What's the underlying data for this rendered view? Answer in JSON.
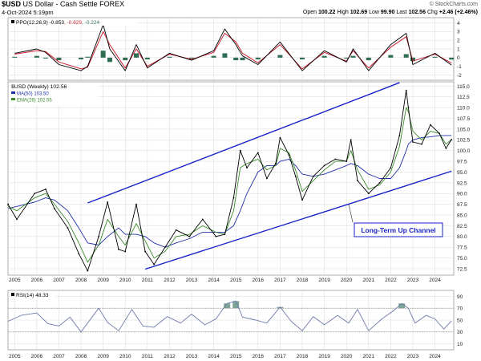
{
  "header": {
    "symbol": "$USD",
    "name": "US Dollar - Cash Settle",
    "exchange": "FOREX",
    "date": "4-Oct-2024 5:19pm",
    "brand": "© StockCharts.com",
    "open_label": "Open",
    "open": "100.22",
    "high_label": "High",
    "high": "102.69",
    "low_label": "Low",
    "low": "99.90",
    "last_label": "Last",
    "last": "102.56",
    "chg_label": "Chg",
    "chg": "+2.46 (+2.46%)"
  },
  "colors": {
    "price": "#000000",
    "ma": "#1f2fa8",
    "ema": "#3a8a2a",
    "channel": "#1a22c8",
    "ppo_hist": "#2f6e52",
    "ppo_line": "#000000",
    "ppo_signal": "#cc2233",
    "rsi": "#6c7aa8",
    "rsi_fill": "#5f8f82",
    "grid": "#d9d9d9",
    "axis": "#888888",
    "annotation_border": "#1a22c8"
  },
  "chart_data": [
    {
      "type": "line",
      "panel": "ppo",
      "label": "PPO(12,26,9) -0.853, -0.629, -0.224",
      "label_parts": [
        "PPO(12,26,9)",
        " -0.853",
        ", -0.629",
        ", -0.224"
      ],
      "ylim": [
        -2.6,
        4.6
      ],
      "y_ticks": [
        4,
        3,
        2,
        1,
        0,
        -1,
        -2
      ],
      "x": [
        2005.0,
        2006.0,
        2006.4,
        2007.0,
        2008.0,
        2008.3,
        2009.0,
        2009.3,
        2010.0,
        2010.5,
        2011.0,
        2012.0,
        2013.0,
        2014.0,
        2014.5,
        2015.0,
        2015.3,
        2016.0,
        2017.0,
        2018.0,
        2019.0,
        2020.0,
        2020.3,
        2021.0,
        2022.0,
        2022.7,
        2023.0,
        2024.0,
        2024.75
      ],
      "series": [
        {
          "values": [
            0.5,
            1.0,
            0.6,
            -0.8,
            -1.5,
            -1.0,
            3.8,
            1.0,
            -1.5,
            1.5,
            -1.2,
            0.5,
            -0.3,
            0.8,
            3.3,
            1.5,
            0.2,
            -0.8,
            1.8,
            -1.5,
            0.8,
            -0.5,
            1.0,
            -1.5,
            1.5,
            2.8,
            -0.8,
            0.5,
            -0.853
          ]
        },
        {
          "values": [
            0.4,
            0.8,
            0.7,
            -0.5,
            -1.3,
            -1.1,
            3.0,
            1.5,
            -1.2,
            1.0,
            -1.0,
            0.4,
            -0.2,
            0.6,
            2.8,
            1.8,
            0.5,
            -0.6,
            1.5,
            -1.3,
            0.6,
            -0.4,
            0.8,
            -1.2,
            1.2,
            2.4,
            -0.4,
            0.4,
            -0.629
          ]
        }
      ]
    },
    {
      "type": "line",
      "panel": "price",
      "label": "$USD (Weekly) 102.56",
      "ylabel": "",
      "ylim": [
        71,
        116
      ],
      "y_ticks": [
        115.0,
        112.5,
        110.0,
        107.5,
        105.0,
        102.5,
        100.0,
        97.5,
        95.0,
        92.5,
        90.0,
        87.5,
        85.0,
        82.5,
        80.0,
        77.5,
        75.0,
        72.5
      ],
      "x_ticks": [
        "2005",
        "2006",
        "2007",
        "2008",
        "2009",
        "2010",
        "2011",
        "2012",
        "2013",
        "2014",
        "2015",
        "2016",
        "2017",
        "2018",
        "2019",
        "2020",
        "2021",
        "2022",
        "2023",
        "2024"
      ],
      "x": [
        2004.7,
        2005.1,
        2005.9,
        2006.4,
        2006.8,
        2007.4,
        2007.9,
        2008.3,
        2008.8,
        2009.2,
        2009.7,
        2010.0,
        2010.5,
        2010.9,
        2011.3,
        2011.8,
        2012.3,
        2012.9,
        2013.5,
        2014.1,
        2014.5,
        2014.9,
        2015.2,
        2015.5,
        2016.0,
        2016.4,
        2016.8,
        2017.0,
        2017.4,
        2017.7,
        2018.0,
        2018.5,
        2019.0,
        2019.5,
        2020.0,
        2020.2,
        2020.5,
        2021.0,
        2021.5,
        2022.0,
        2022.4,
        2022.7,
        2022.8,
        2023.0,
        2023.4,
        2023.8,
        2024.2,
        2024.5,
        2024.75
      ],
      "series": [
        {
          "name": "$USD",
          "values": [
            87.5,
            84.0,
            90.0,
            91.0,
            86.5,
            82.0,
            76.0,
            72.0,
            80.0,
            88.0,
            77.0,
            76.5,
            87.5,
            76.5,
            73.5,
            77.5,
            81.5,
            80.0,
            84.0,
            80.0,
            80.5,
            89.0,
            100.0,
            96.0,
            99.5,
            93.5,
            97.0,
            103.0,
            99.0,
            94.0,
            88.5,
            94.0,
            96.5,
            98.0,
            97.5,
            102.5,
            93.0,
            90.0,
            92.5,
            96.0,
            103.5,
            114.0,
            110.0,
            102.0,
            101.5,
            106.0,
            104.0,
            100.5,
            102.56
          ]
        },
        {
          "name": "MA(50) 103.50",
          "values": [
            86.5,
            87.0,
            88.0,
            89.0,
            88.5,
            86.0,
            82.0,
            78.5,
            78.0,
            80.0,
            82.0,
            80.5,
            80.5,
            80.0,
            78.5,
            77.5,
            78.5,
            79.5,
            81.0,
            81.0,
            81.0,
            82.5,
            86.0,
            90.0,
            95.0,
            96.5,
            96.5,
            97.5,
            98.0,
            96.5,
            94.5,
            94.0,
            94.5,
            95.5,
            96.5,
            97.0,
            96.5,
            94.5,
            93.5,
            93.5,
            96.0,
            100.0,
            101.5,
            102.5,
            103.0,
            103.2,
            103.5,
            103.5,
            103.5
          ]
        },
        {
          "name": "EMA(26) 102.55",
          "values": [
            87.0,
            86.0,
            89.0,
            90.0,
            87.5,
            83.5,
            78.5,
            74.0,
            78.0,
            84.0,
            80.0,
            78.0,
            83.0,
            79.0,
            75.0,
            76.5,
            80.0,
            80.5,
            82.5,
            81.0,
            80.5,
            86.0,
            96.0,
            97.0,
            98.0,
            95.5,
            96.5,
            100.5,
            99.5,
            95.5,
            90.5,
            93.0,
            95.5,
            97.5,
            97.5,
            100.0,
            95.5,
            91.0,
            92.0,
            95.0,
            101.0,
            110.0,
            109.0,
            104.5,
            102.5,
            104.5,
            104.0,
            101.5,
            102.55
          ]
        }
      ],
      "channel_lines": [
        {
          "from": {
            "x": 2008.3,
            "y": 87.8
          },
          "to": {
            "x": 2022.4,
            "y": 115.8
          }
        },
        {
          "from": {
            "x": 2010.9,
            "y": 72.4
          },
          "to": {
            "x": 2024.75,
            "y": 95.2
          }
        }
      ],
      "annotation": "Long-Term Up Channel"
    },
    {
      "type": "area",
      "panel": "rsi",
      "label": "RSI(14) 48.33",
      "ylim": [
        0,
        100
      ],
      "y_ticks": [
        90,
        70,
        50,
        30,
        10
      ],
      "reference_lines": [
        30,
        70
      ],
      "x": [
        2004.7,
        2005.3,
        2006.0,
        2006.5,
        2007.0,
        2007.5,
        2008.0,
        2008.3,
        2008.8,
        2009.2,
        2009.7,
        2010.3,
        2010.8,
        2011.3,
        2011.9,
        2012.5,
        2013.0,
        2013.6,
        2014.1,
        2014.6,
        2015.0,
        2015.3,
        2015.9,
        2016.4,
        2017.0,
        2017.5,
        2018.0,
        2018.5,
        2019.0,
        2019.6,
        2020.1,
        2020.5,
        2021.0,
        2021.6,
        2022.1,
        2022.5,
        2022.8,
        2023.1,
        2023.6,
        2024.0,
        2024.4,
        2024.75
      ],
      "values": [
        48,
        58,
        62,
        44,
        40,
        55,
        30,
        45,
        70,
        46,
        32,
        68,
        40,
        38,
        56,
        45,
        60,
        42,
        52,
        78,
        82,
        55,
        50,
        45,
        72,
        48,
        32,
        56,
        42,
        58,
        45,
        68,
        32,
        52,
        65,
        78,
        70,
        45,
        58,
        52,
        35,
        48.33
      ]
    }
  ]
}
